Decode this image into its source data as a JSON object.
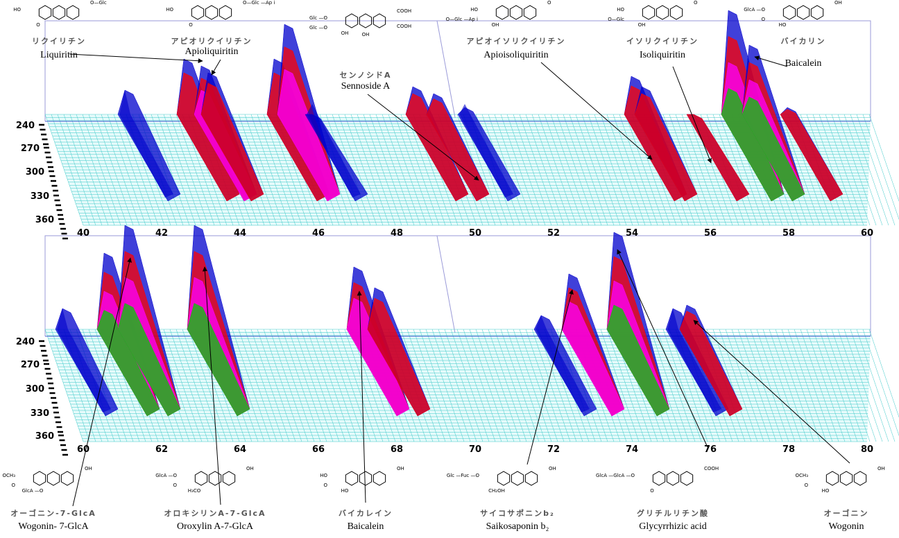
{
  "panels": [
    {
      "xticks": [
        40,
        42,
        44,
        46,
        48,
        50,
        52,
        54,
        56,
        58,
        60
      ],
      "wavelength_ticks": [
        240,
        270,
        300,
        330,
        360
      ],
      "compounds": [
        {
          "jp": "リクイリチン",
          "en": "Liquiritin",
          "groups": [
            "HO",
            "O",
            "O—Glc"
          ]
        },
        {
          "jp": "アピオリクイリチン",
          "en": "Apioliquiritin",
          "groups": [
            "HO",
            "O",
            "O—Glc —Ap i"
          ]
        },
        {
          "jp": "センノシドA",
          "en": "Sennoside A",
          "groups": [
            "Glc —O",
            "OH",
            "COOH",
            "Glc —O",
            "OH",
            "COOH"
          ]
        },
        {
          "jp": "アピオイソリクイリチン",
          "en": "Apioisoliquiritin",
          "groups": [
            "HO",
            "OH",
            "O",
            "O—Glc —Ap i"
          ]
        },
        {
          "jp": "イソリクイリチン",
          "en": "Isoliquiritin",
          "groups": [
            "HO",
            "OH",
            "O",
            "O—Glc"
          ]
        },
        {
          "jp": "バイカリン",
          "en": "Baicalein",
          "groups": [
            "GlcA —O",
            "HO",
            "OH",
            "O"
          ]
        }
      ]
    },
    {
      "xticks": [
        60,
        62,
        64,
        66,
        68,
        70,
        72,
        74,
        76,
        78,
        80
      ],
      "wavelength_ticks": [
        240,
        270,
        300,
        330,
        360
      ],
      "compounds": [
        {
          "jp": "オーゴニン-7-GlcA",
          "en": "Wogonin- 7-GlcA",
          "groups": [
            "OCH₃",
            "GlcA —O",
            "OH",
            "O"
          ]
        },
        {
          "jp": "オロキシリンA-7-GlcA",
          "en": "Oroxylin A-7-GlcA",
          "groups": [
            "GlcA —O",
            "H₃CO",
            "OH",
            "O"
          ]
        },
        {
          "jp": "バイカレイン",
          "en": "Baicalein",
          "groups": [
            "HO",
            "HO",
            "OH",
            "O"
          ]
        },
        {
          "jp": "サイコサポニンb₂",
          "en": "Saikosaponin b₂",
          "groups": [
            "Glc —Fuc —O",
            "CH₂OH",
            "OH"
          ]
        },
        {
          "jp": "グリチルリチン酸",
          "en": "Glycyrrhizic acid",
          "groups": [
            "GlcA —GlcA —O",
            "O",
            "COOH"
          ]
        },
        {
          "jp": "オーゴニン",
          "en": "Wogonin",
          "groups": [
            "OCH₃",
            "HO",
            "OH",
            "O"
          ]
        }
      ]
    }
  ]
}
